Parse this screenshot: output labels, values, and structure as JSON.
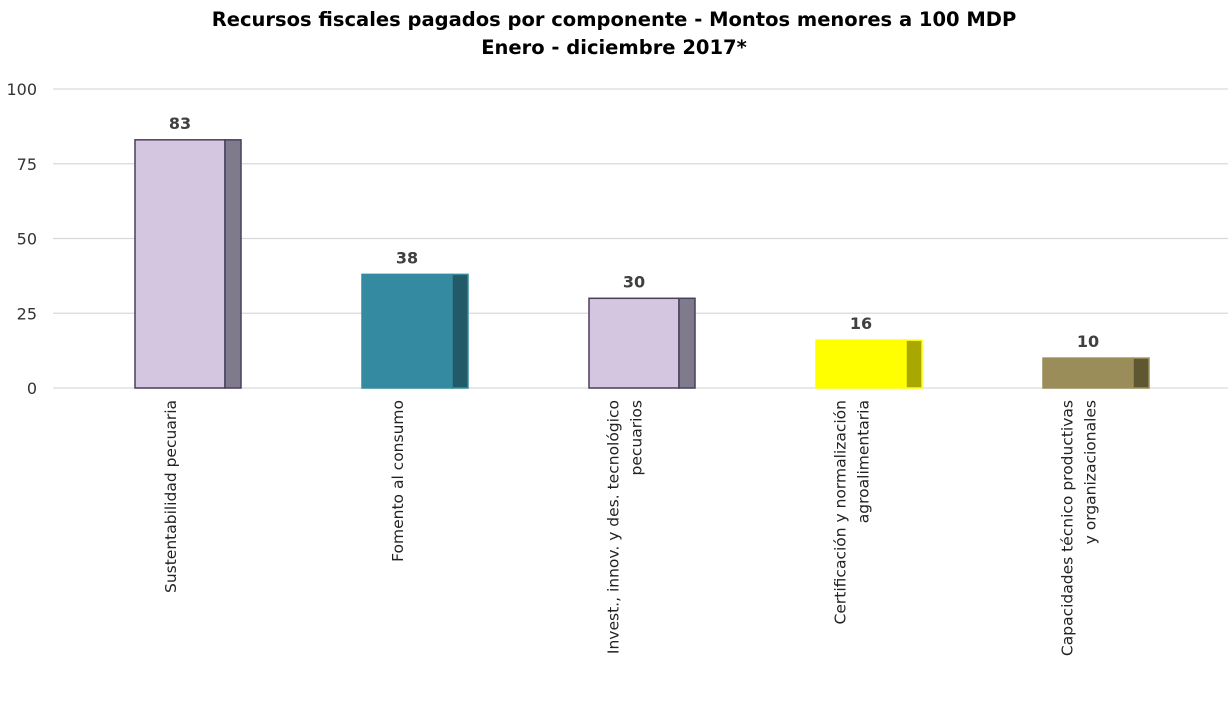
{
  "chart_data": {
    "type": "bar",
    "title": "Recursos fiscales pagados por componente - Montos menores a 100 MDP",
    "subtitle": "Enero - diciembre 2017*",
    "categories": [
      [
        "Sustentabilidad pecuaria"
      ],
      [
        "Fomento al consumo"
      ],
      [
        "Invest., innov. y des. tecnológico",
        "pecuarios"
      ],
      [
        "Certificación y normalización",
        "agroalimentaria"
      ],
      [
        "Capacidades técnico productivas",
        "y organizacionales"
      ]
    ],
    "values": [
      83,
      38,
      30,
      16,
      10
    ],
    "value_labels": [
      "83",
      "38",
      "30",
      "16",
      "10"
    ],
    "colors": [
      {
        "front": "#d4c6e1",
        "side": "#7f7a8c",
        "stroke": "#4a3f5c"
      },
      {
        "front": "#348aa0",
        "side": "#225a68",
        "stroke": "#348aa0"
      },
      {
        "front": "#d4c6e1",
        "side": "#7f7a8c",
        "stroke": "#4a3f5c"
      },
      {
        "front": "#ffff00",
        "side": "#a8a800",
        "stroke": "#ffff00"
      },
      {
        "front": "#9a8d59",
        "side": "#5f5732",
        "stroke": "#9a8d59"
      }
    ],
    "yticks": [
      "0",
      "25",
      "50",
      "75",
      "100"
    ],
    "ylim": [
      0,
      100
    ],
    "grid": true,
    "xlabel": "",
    "ylabel": ""
  }
}
